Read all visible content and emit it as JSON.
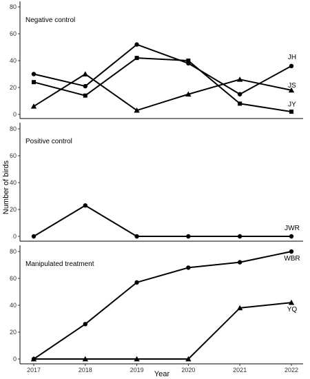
{
  "chart_data": {
    "type": "line",
    "xlabel": "Year",
    "ylabel": "Number of birds",
    "x": [
      2017,
      2018,
      2019,
      2020,
      2021,
      2022
    ],
    "ylim": [
      0,
      85
    ],
    "y_ticks": [
      0,
      20,
      40,
      60,
      80
    ],
    "grid": false,
    "legend": "none",
    "panels": [
      {
        "title": "Negative control",
        "series": [
          {
            "label": "JH",
            "marker": "circle",
            "values": [
              30,
              21,
              52,
              38,
              15,
              36
            ]
          },
          {
            "label": "JS",
            "marker": "triangle",
            "values": [
              6,
              30,
              3,
              15,
              26,
              18
            ]
          },
          {
            "label": "JY",
            "marker": "square",
            "values": [
              24,
              14,
              42,
              40,
              8,
              2
            ]
          }
        ]
      },
      {
        "title": "Positive control",
        "series": [
          {
            "label": "JWR",
            "marker": "circle",
            "values": [
              0,
              23,
              0,
              0,
              0,
              0
            ]
          }
        ]
      },
      {
        "title": "Manipulated treatment",
        "series": [
          {
            "label": "WBR",
            "marker": "circle",
            "values": [
              0,
              26,
              57,
              68,
              72,
              80
            ]
          },
          {
            "label": "YQ",
            "marker": "triangle",
            "values": [
              0,
              0,
              0,
              0,
              38,
              42
            ]
          }
        ]
      }
    ]
  }
}
